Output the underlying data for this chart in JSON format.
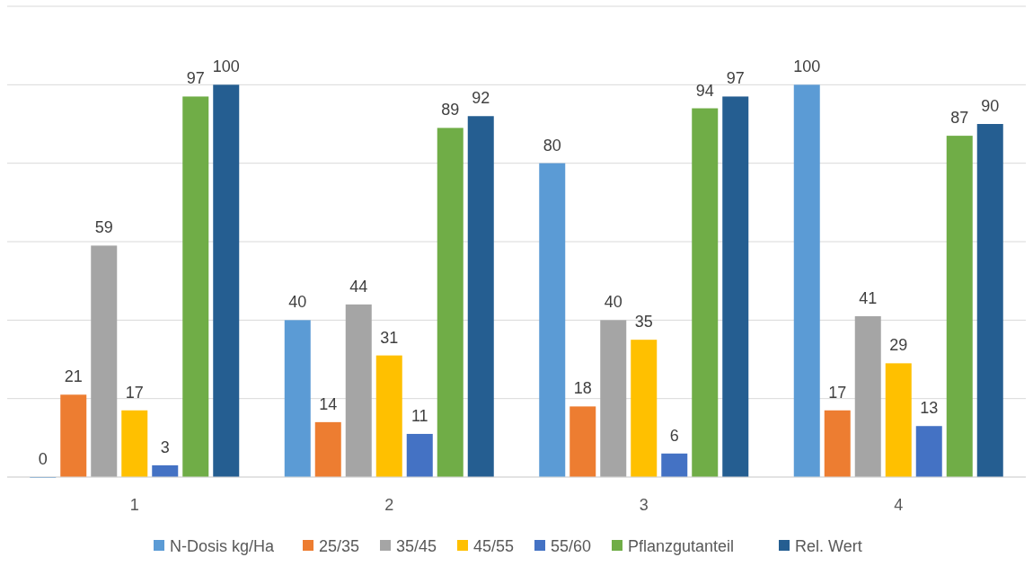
{
  "chart_data": {
    "type": "bar",
    "categories": [
      "1",
      "2",
      "3",
      "4"
    ],
    "series": [
      {
        "name": "N-Dosis kg/Ha",
        "color": "#5b9bd5",
        "values": [
          0,
          40,
          80,
          100
        ]
      },
      {
        "name": "25/35",
        "color": "#ed7d31",
        "values": [
          21,
          14,
          18,
          17
        ]
      },
      {
        "name": "35/45",
        "color": "#a5a5a5",
        "values": [
          59,
          44,
          40,
          41
        ]
      },
      {
        "name": "45/55",
        "color": "#ffc000",
        "values": [
          17,
          31,
          35,
          29
        ]
      },
      {
        "name": "55/60",
        "color": "#4472c4",
        "values": [
          3,
          11,
          6,
          13
        ]
      },
      {
        "name": "Pflanzgutanteil",
        "color": "#70ad47",
        "values": [
          97,
          89,
          94,
          87
        ]
      },
      {
        "name": "Rel. Wert",
        "color": "#255e91",
        "values": [
          100,
          92,
          97,
          90
        ]
      }
    ],
    "ylim": [
      0,
      120
    ],
    "yticks": [
      {
        "value": 0,
        "label": null
      },
      {
        "value": 20,
        "label": null
      },
      {
        "value": 40,
        "label": null
      },
      {
        "value": 60,
        "label": null
      },
      {
        "value": 80,
        "label": null
      },
      {
        "value": 100,
        "label": null
      },
      {
        "value": 120,
        "label": null
      }
    ],
    "tick_labels": "x",
    "grid": "y",
    "legend": "bottom",
    "data_labels": true
  }
}
